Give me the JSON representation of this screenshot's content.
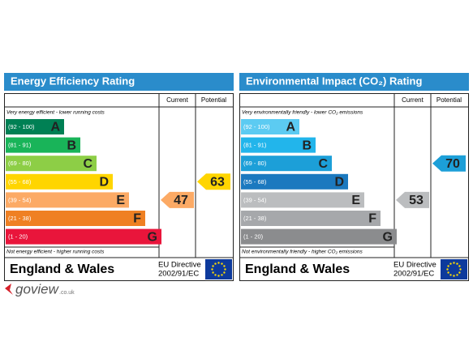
{
  "panels": [
    {
      "title": "Energy Efficiency Rating",
      "columns": [
        "Current",
        "Potential"
      ],
      "top_note": "Very energy efficient - lower running costs",
      "bands": [
        {
          "range": "(92 - 100)",
          "letter": "A",
          "color": "#008054"
        },
        {
          "range": "(81 - 91)",
          "letter": "B",
          "color": "#19b459"
        },
        {
          "range": "(69 - 80)",
          "letter": "C",
          "color": "#8dce46"
        },
        {
          "range": "(55 - 68)",
          "letter": "D",
          "color": "#ffd500"
        },
        {
          "range": "(39 - 54)",
          "letter": "E",
          "color": "#fcaa65"
        },
        {
          "range": "(21 - 38)",
          "letter": "F",
          "color": "#ef8023"
        },
        {
          "range": "(1 - 20)",
          "letter": "G",
          "color": "#e9153b"
        }
      ],
      "bottom_note": "Not energy efficient - higher running costs",
      "current": 47,
      "potential": 63,
      "footer": {
        "region": "England & Wales",
        "directive": [
          "EU Directive",
          "2002/91/EC"
        ]
      }
    },
    {
      "title": "Environmental Impact (CO₂) Rating",
      "columns": [
        "Current",
        "Potential"
      ],
      "top_note": "Very environmentally friendly - lower CO₂ emissions",
      "bands": [
        {
          "range": "(92 - 100)",
          "letter": "A",
          "color": "#5ccbf2"
        },
        {
          "range": "(81 - 91)",
          "letter": "B",
          "color": "#22b5eb"
        },
        {
          "range": "(69 - 80)",
          "letter": "C",
          "color": "#1c9fd8"
        },
        {
          "range": "(55 - 68)",
          "letter": "D",
          "color": "#1b79bf"
        },
        {
          "range": "(39 - 54)",
          "letter": "E",
          "color": "#bbbdbf"
        },
        {
          "range": "(21 - 38)",
          "letter": "F",
          "color": "#a6a8ab"
        },
        {
          "range": "(1 - 20)",
          "letter": "G",
          "color": "#8b8c8e"
        }
      ],
      "bottom_note": "Not environmentally friendly - higher CO₂ emissions",
      "current": 53,
      "potential": 70,
      "footer": {
        "region": "England & Wales",
        "directive": [
          "EU Directive",
          "2002/91/EC"
        ]
      }
    }
  ],
  "logo": {
    "name": "goview",
    "suffix": ".co.uk"
  }
}
